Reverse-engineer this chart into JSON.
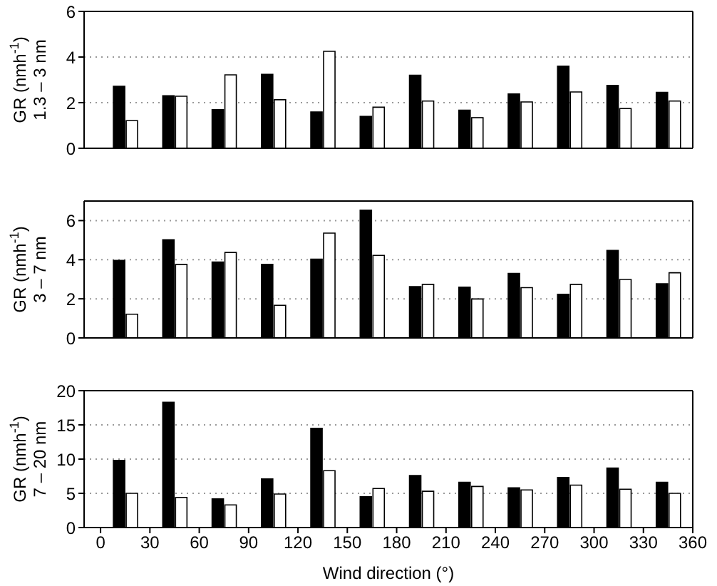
{
  "chart_data": [
    {
      "type": "bar",
      "ylabel": "GR (nmh$^{-1}$)\n1.3 – 3 nm",
      "x": [
        15,
        45,
        75,
        105,
        135,
        165,
        195,
        225,
        255,
        285,
        315,
        345
      ],
      "xlim": [
        -10,
        360
      ],
      "xticks": [
        0,
        30,
        60,
        90,
        120,
        150,
        180,
        210,
        240,
        270,
        300,
        330,
        360
      ],
      "ylim": [
        0,
        6
      ],
      "yticks": [
        0,
        2,
        4,
        6
      ],
      "grid": "y",
      "tick_labels": "y",
      "series": [
        {
          "color": "#000000",
          "values": [
            2.72,
            2.3,
            1.69,
            3.24,
            1.59,
            1.4,
            3.2,
            1.67,
            2.38,
            3.6,
            2.76,
            2.45
          ]
        },
        {
          "color": "#ffffff",
          "values": [
            1.21,
            2.28,
            3.22,
            2.13,
            4.25,
            1.8,
            2.07,
            1.34,
            2.03,
            2.47,
            1.74,
            2.07
          ]
        }
      ]
    },
    {
      "type": "bar",
      "ylabel": "GR (nmh$^{-1}$)\n3 – 7 nm",
      "x": [
        15,
        45,
        75,
        105,
        135,
        165,
        195,
        225,
        255,
        285,
        315,
        345
      ],
      "xlim": [
        -10,
        360
      ],
      "xticks": [
        0,
        30,
        60,
        90,
        120,
        150,
        180,
        210,
        240,
        270,
        300,
        330,
        360
      ],
      "ylim": [
        0,
        7
      ],
      "yticks": [
        0,
        2,
        4,
        6
      ],
      "grid": "y",
      "tick_labels": "y",
      "series": [
        {
          "color": "#000000",
          "values": [
            3.96,
            5.02,
            3.88,
            3.76,
            4.03,
            6.53,
            2.62,
            2.6,
            3.3,
            2.23,
            4.47,
            2.77
          ]
        },
        {
          "color": "#ffffff",
          "values": [
            1.21,
            3.76,
            4.37,
            1.67,
            5.36,
            4.22,
            2.74,
            1.99,
            2.57,
            2.74,
            2.99,
            3.33
          ]
        }
      ]
    },
    {
      "type": "bar",
      "ylabel": "GR (nmh$^{-1}$)\n7 – 20 nm",
      "xlabel": "Wind direction (°)",
      "x": [
        15,
        45,
        75,
        105,
        135,
        165,
        195,
        225,
        255,
        285,
        315,
        345
      ],
      "xlim": [
        -10,
        360
      ],
      "xticks": [
        0,
        30,
        60,
        90,
        120,
        150,
        180,
        210,
        240,
        270,
        300,
        330,
        360
      ],
      "ylim": [
        0,
        20
      ],
      "yticks": [
        0,
        5,
        10,
        15,
        20
      ],
      "grid": "y",
      "series": [
        {
          "color": "#000000",
          "values": [
            9.8,
            18.3,
            4.2,
            7.1,
            14.5,
            4.5,
            7.6,
            6.6,
            5.8,
            7.3,
            8.7,
            6.6
          ]
        },
        {
          "color": "#ffffff",
          "values": [
            5.0,
            4.4,
            3.3,
            4.9,
            8.3,
            5.7,
            5.3,
            6.0,
            5.5,
            6.2,
            5.6,
            5.0
          ]
        }
      ]
    }
  ]
}
